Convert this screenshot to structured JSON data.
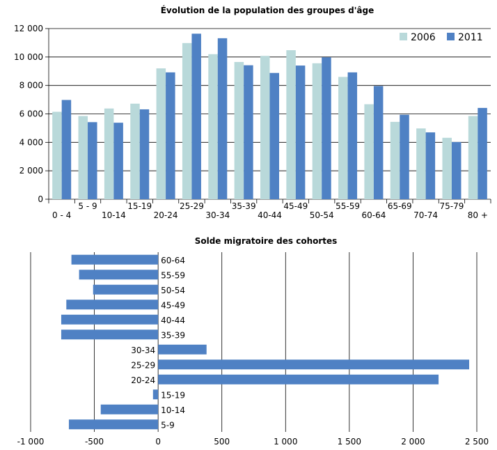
{
  "chart_data": [
    {
      "type": "bar",
      "title": "Évolution de la population des groupes d'âge",
      "categories": [
        "0 - 4",
        "5 - 9",
        "10-14",
        "15-19",
        "20-24",
        "25-29",
        "30-34",
        "35-39",
        "40-44",
        "45-49",
        "50-54",
        "55-59",
        "60-64",
        "65-69",
        "70-74",
        "75-79",
        "80 +"
      ],
      "series": [
        {
          "name": "2006",
          "color": "#b9d9da",
          "values": [
            6150,
            5850,
            6380,
            6720,
            9200,
            10980,
            10200,
            9650,
            10080,
            10480,
            9560,
            8600,
            6680,
            5440,
            4980,
            4320,
            5850
          ]
        },
        {
          "name": "2011",
          "color": "#4f81c4",
          "values": [
            6980,
            5420,
            5380,
            6320,
            8920,
            11640,
            11320,
            9420,
            8880,
            9400,
            9980,
            8920,
            7960,
            5940,
            4700,
            4020,
            6420
          ]
        }
      ],
      "ylim": [
        0,
        12000
      ],
      "yticks": [
        "0",
        "2 000",
        "4 000",
        "6 000",
        "8 000",
        "10 000",
        "12 000"
      ],
      "ytick_values": [
        0,
        2000,
        4000,
        6000,
        8000,
        10000,
        12000
      ],
      "legend_position": "top-right",
      "grid": true
    },
    {
      "type": "bar",
      "orientation": "horizontal",
      "title": "Solde migratoire des cohortes",
      "categories": [
        "60-64",
        "55-59",
        "50-54",
        "45-49",
        "40-44",
        "35-39",
        "30-34",
        "25-29",
        "20-24",
        "15-19",
        "10-14",
        "5-9"
      ],
      "values": [
        -680,
        -620,
        -510,
        -720,
        -760,
        -760,
        380,
        2440,
        2200,
        -40,
        -450,
        -700
      ],
      "color": "#4f81c4",
      "xlim": [
        -1000,
        2500
      ],
      "xticks": [
        "-1 000",
        "-500",
        "0",
        "500",
        "1 000",
        "1 500",
        "2 000",
        "2 500"
      ],
      "xtick_values": [
        -1000,
        -500,
        0,
        500,
        1000,
        1500,
        2000,
        2500
      ],
      "grid": true
    }
  ]
}
